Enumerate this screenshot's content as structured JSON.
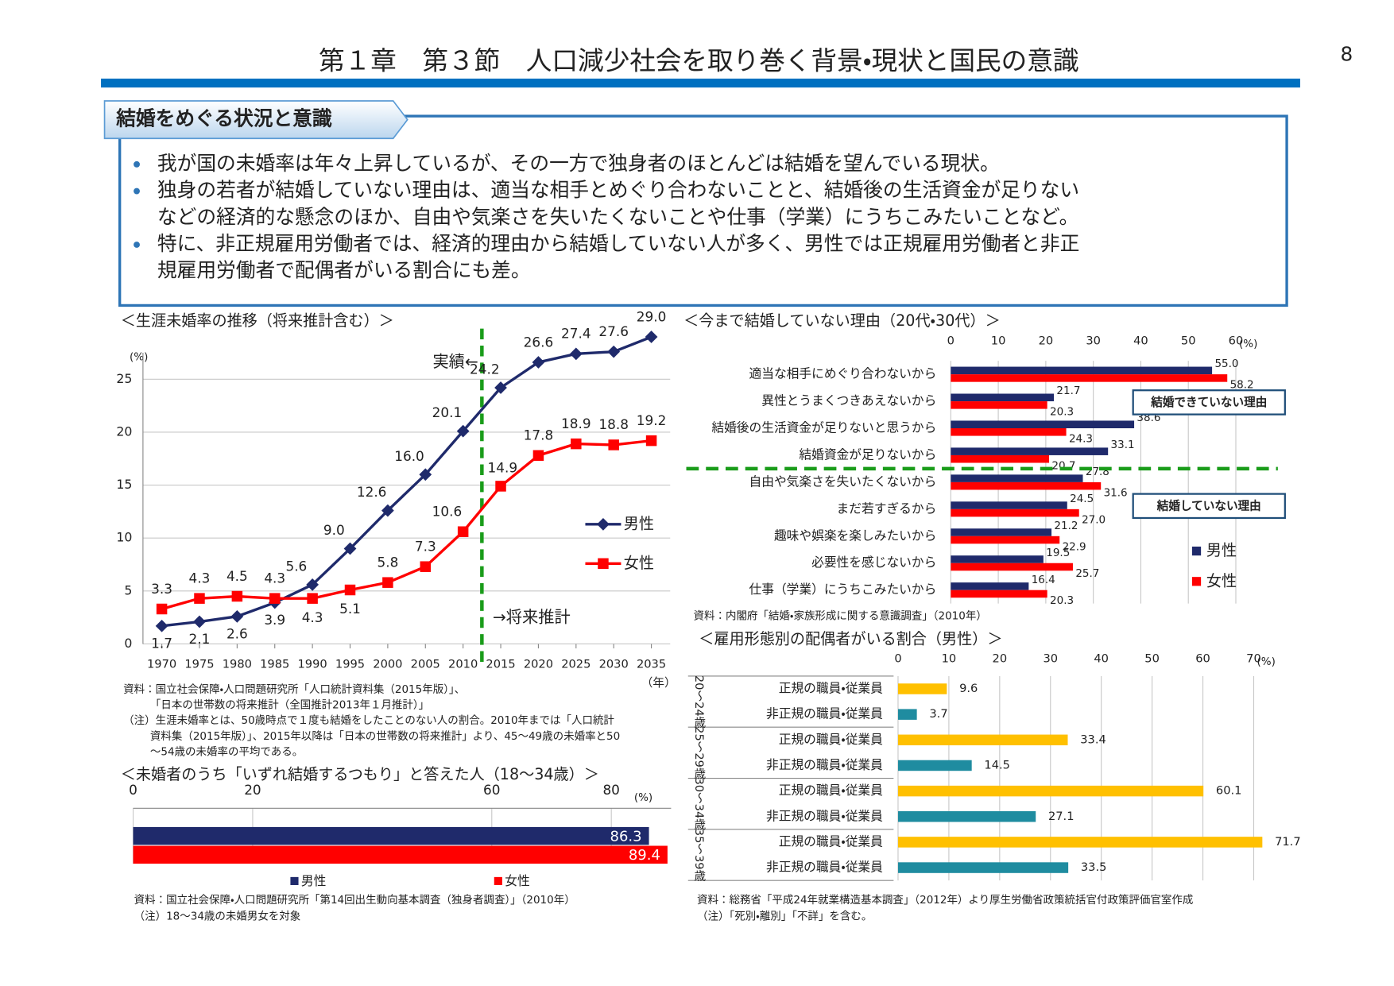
{
  "page_title": "第１章　第３節　人口減少社会を取り巻く背景・現状と国民の意識",
  "page_number": 8,
  "section_title": "結婚をめぐる状況と意識",
  "bullets": [
    [
      "我が国の未婚率は年々上昇しているが、その一方で独身者のほとんどは結婚を望んでいる現状。"
    ],
    [
      "独身の若者が結婚していない理由は、適当な相手とめぐり合わないことと、結婚後の生活資金が足りない",
      "などの経済的な懸念のほか、自由や気楽さを失いたくないことや仕事（学業）にうちこみたいことなど。"
    ],
    [
      "特に、非正規雇用労働者では、経済的理由から結婚していない人が多く、男性では正規雇用労働者と非正",
      "規雇用労働者で配偶者がいる割合にも差。"
    ]
  ],
  "chart_data": [
    {
      "type": "line",
      "title": "＜生涯未婚率の推移（将来推計含む）＞",
      "y_unit": "(%)",
      "x_unit": "（年）",
      "x": [
        1970,
        1975,
        1980,
        1985,
        1990,
        1995,
        2000,
        2005,
        2010,
        2015,
        2020,
        2025,
        2030,
        2035
      ],
      "series": [
        {
          "name": "男性",
          "color": "#1f2a6b",
          "marker": "diamond",
          "values": [
            1.7,
            2.1,
            2.6,
            3.9,
            5.6,
            9.0,
            12.6,
            16.0,
            20.1,
            24.2,
            26.6,
            27.4,
            27.6,
            29.0
          ],
          "value_labels": [
            "1.7",
            "2.1",
            "2.6",
            "3.9",
            "5.6",
            "9.0",
            "12.6",
            "16.0",
            "20.1",
            "24.2",
            "26.6",
            "27.4",
            "27.6",
            "29.0"
          ]
        },
        {
          "name": "女性",
          "color": "#ff0000",
          "marker": "square",
          "values": [
            3.3,
            4.3,
            4.5,
            4.3,
            4.3,
            5.1,
            5.8,
            7.3,
            10.6,
            14.9,
            17.8,
            18.9,
            18.8,
            19.2
          ],
          "value_labels": [
            "3.3",
            "4.3",
            "4.5",
            "4.3",
            "4.3",
            "5.1",
            "5.8",
            "7.3",
            "10.6",
            "14.9",
            "17.8",
            "18.9",
            "18.8",
            "19.2"
          ]
        }
      ],
      "xlim": [
        1967.5,
        2037.5
      ],
      "xticks": [
        1970,
        1975,
        1980,
        1985,
        1990,
        1995,
        2000,
        2005,
        2010,
        2015,
        2020,
        2025,
        2030,
        2035
      ],
      "ylim": [
        0,
        27.5
      ],
      "yticks": [
        0,
        5,
        10,
        15,
        20,
        25
      ],
      "grid": true,
      "divider_color": "#1a9c1a",
      "annotations": [
        "実績←",
        "→将来推計"
      ],
      "notes": [
        "資料：国立社会保障・人口問題研究所「人口統計資料集（2015年版）」、",
        "「日本の世帯数の将来推計（全国推計2013年１月推計）」",
        "（注）生涯未婚率とは、50歳時点で１度も結婚をしたことのない人の割合。2010年までは「人口統計",
        "資料集（2015年版）」、2015年以降は「日本の世帯数の将来推計」より、45～49歳の未婚率と50",
        "～54歳の未婚率の平均である。"
      ]
    },
    {
      "type": "bar",
      "title": "＜今まで結婚していない理由（20代・30代）＞",
      "x_unit": "(%)",
      "categories": [
        "適当な相手にめぐり合わないから",
        "異性とうまくつきあえないから",
        "結婚後の生活資金が足りないと思うから",
        "結婚資金が足りないから",
        "自由や気楽さを失いたくないから",
        "まだ若すぎるから",
        "趣味や娯楽を楽しみたいから",
        "必要性を感じないから",
        "仕事（学業）にうちこみたいから"
      ],
      "series": [
        {
          "name": "男性",
          "color": "#1f2a6b",
          "values": [
            55.0,
            21.7,
            38.6,
            33.1,
            27.8,
            24.5,
            21.2,
            19.5,
            16.4
          ],
          "value_labels": [
            "55.0",
            "21.7",
            "38.6",
            "33.1",
            "27.8",
            "24.5",
            "21.2",
            "19.5",
            "16.4"
          ]
        },
        {
          "name": "女性",
          "color": "#ff0000",
          "values": [
            58.2,
            20.3,
            24.3,
            20.7,
            31.6,
            27.0,
            22.9,
            25.7,
            20.3
          ],
          "value_labels": [
            "58.2",
            "20.3",
            "24.3",
            "20.7",
            "31.6",
            "27.0",
            "22.9",
            "25.7",
            "20.3"
          ]
        }
      ],
      "xlim": [
        0,
        60
      ],
      "xticks": [
        0,
        10,
        20,
        30,
        40,
        50,
        60
      ],
      "grid": true,
      "divider_color": "#1a9c1a",
      "annotations": [
        "結婚できていない理由",
        "結婚していない理由"
      ],
      "notes": [
        "資料：内閣府「結婚・家族形成に関する意識調査」（2010年）"
      ]
    },
    {
      "type": "bar",
      "title": "＜雇用形態別の配偶者がいる割合（男性）＞",
      "x_unit": "(%)",
      "groups": [
        "20～24歳",
        "25～29歳",
        "30～34歳",
        "35～39歳"
      ],
      "categories": [
        "正規の職員・従業員",
        "非正規の職員・従業員",
        "正規の職員・従業員",
        "非正規の職員・従業員",
        "正規の職員・従業員",
        "非正規の職員・従業員",
        "正規の職員・従業員",
        "非正規の職員・従業員"
      ],
      "values": [
        9.6,
        3.7,
        33.4,
        14.5,
        60.1,
        27.1,
        71.7,
        33.5
      ],
      "colors": [
        "#ffc000",
        "#1f8ca0",
        "#ffc000",
        "#1f8ca0",
        "#ffc000",
        "#1f8ca0",
        "#ffc000",
        "#1f8ca0"
      ],
      "xlim": [
        0,
        70
      ],
      "xticks": [
        0,
        10,
        20,
        30,
        40,
        50,
        60,
        70
      ],
      "grid": true,
      "notes": [
        "資料：総務省「平成24年就業構造基本調査」（2012年）より厚生労働省政策統括官付政策評価官室作成",
        "（注）「死別・離別」「不詳」を含む。"
      ]
    },
    {
      "type": "bar",
      "title": "＜未婚者のうち「いずれ結婚するつもり」と答えた人（18～34歳）＞",
      "x_unit": "(%)",
      "series": [
        {
          "name": "男性",
          "color": "#1f2a6b",
          "values": [
            86.3
          ]
        },
        {
          "name": "女性",
          "color": "#ff0000",
          "values": [
            89.4
          ]
        }
      ],
      "xlim": [
        0,
        90
      ],
      "xticks": [
        0,
        20,
        60,
        80
      ],
      "grid": true,
      "notes": [
        "資料：国立社会保障・人口問題研究所「第14回出生動向基本調査（独身者調査）」（2010年）",
        "（注）18～34歳の未婚男女を対象"
      ]
    }
  ]
}
